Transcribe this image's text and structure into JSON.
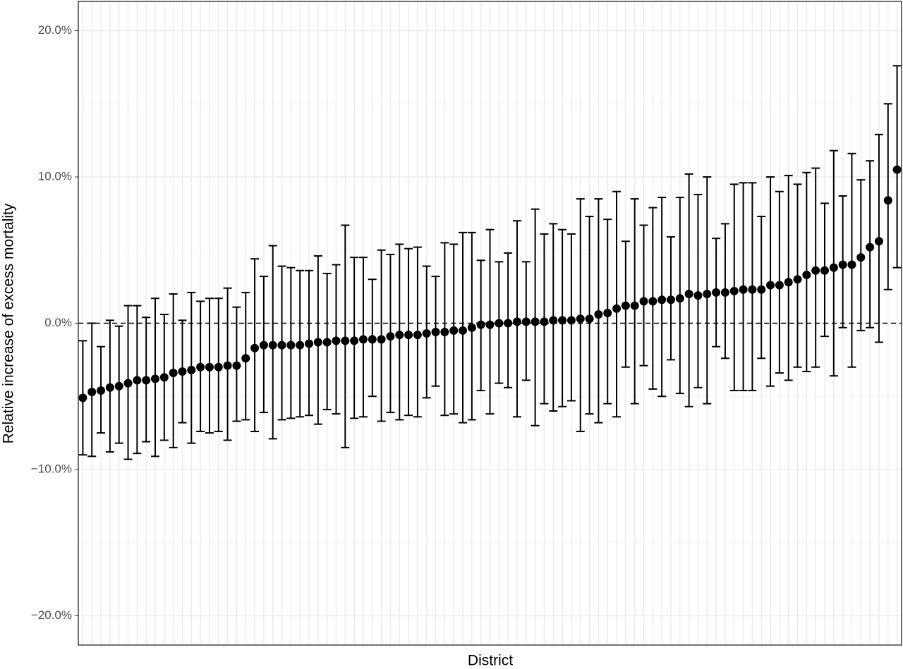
{
  "chart_data": {
    "type": "errorbar",
    "x_label": "District",
    "y_label": "Relative increase of excess mortality",
    "categories": [
      null,
      null,
      null,
      null,
      null,
      null,
      null,
      null,
      null,
      null,
      null,
      null,
      null,
      null,
      null,
      null,
      null,
      null,
      null,
      null,
      null,
      null,
      null,
      null,
      null,
      null,
      null,
      null,
      null,
      null,
      null,
      null,
      null,
      null,
      null,
      null,
      null,
      null,
      null,
      null,
      null,
      null,
      null,
      null,
      null,
      null,
      null,
      null,
      null,
      null,
      null,
      null,
      null,
      null,
      null,
      null,
      null,
      null,
      null,
      null,
      null,
      null,
      null,
      null,
      null,
      null,
      null,
      null,
      null,
      null,
      null,
      null,
      null,
      null,
      null,
      null,
      null,
      null,
      null,
      null,
      null,
      null,
      null,
      null,
      null,
      null,
      null,
      null,
      null,
      null,
      null
    ],
    "series": [
      {
        "color": "#000000",
        "values": [
          -5.1,
          -4.7,
          -4.6,
          -4.4,
          -4.3,
          -4.1,
          -3.9,
          -3.9,
          -3.8,
          -3.7,
          -3.4,
          -3.3,
          -3.2,
          -3.0,
          -3.0,
          -3.0,
          -2.9,
          -2.9,
          -2.4,
          -1.7,
          -1.5,
          -1.5,
          -1.5,
          -1.5,
          -1.5,
          -1.4,
          -1.3,
          -1.3,
          -1.2,
          -1.2,
          -1.2,
          -1.1,
          -1.1,
          -1.1,
          -0.9,
          -0.8,
          -0.8,
          -0.8,
          -0.7,
          -0.6,
          -0.6,
          -0.5,
          -0.5,
          -0.3,
          -0.1,
          -0.1,
          0.0,
          0.0,
          0.1,
          0.1,
          0.1,
          0.1,
          0.2,
          0.2,
          0.2,
          0.3,
          0.3,
          0.6,
          0.7,
          1.0,
          1.2,
          1.2,
          1.5,
          1.5,
          1.6,
          1.6,
          1.7,
          2.0,
          1.9,
          2.0,
          2.1,
          2.1,
          2.2,
          2.3,
          2.3,
          2.3,
          2.6,
          2.6,
          2.8,
          3.0,
          3.3,
          3.6,
          3.6,
          3.8,
          4.0,
          4.0,
          4.5,
          5.2,
          5.6,
          8.4,
          10.5
        ],
        "lower": [
          -9.0,
          -9.1,
          -7.5,
          -8.8,
          -8.2,
          -9.3,
          -8.9,
          -8.1,
          -9.1,
          -8.0,
          -8.5,
          -6.8,
          -8.2,
          -7.4,
          -7.5,
          -7.4,
          -8.0,
          -6.7,
          -6.6,
          -7.4,
          -6.1,
          -7.9,
          -6.6,
          -6.5,
          -6.4,
          -6.3,
          -6.9,
          -5.9,
          -6.2,
          -8.5,
          -6.5,
          -6.4,
          -5.0,
          -6.7,
          -6.1,
          -6.6,
          -6.3,
          -6.4,
          -5.1,
          -4.3,
          -6.3,
          -6.2,
          -6.8,
          -6.6,
          -4.6,
          -6.2,
          -4.1,
          -4.4,
          -6.4,
          -3.9,
          -7.0,
          -5.5,
          -6.0,
          -5.7,
          -5.3,
          -7.4,
          -6.2,
          -6.8,
          -5.5,
          -6.4,
          -3.0,
          -5.5,
          -2.9,
          -4.5,
          -5.0,
          -2.5,
          -4.8,
          -5.7,
          -4.4,
          -5.5,
          -1.6,
          -2.4,
          -4.6,
          -4.6,
          -4.6,
          -2.4,
          -4.3,
          -3.4,
          -3.9,
          -3.0,
          -3.3,
          -3.0,
          -0.9,
          -3.6,
          -0.3,
          -3.0,
          -0.5,
          -0.3,
          -1.3,
          2.3,
          3.8
        ],
        "upper": [
          -1.2,
          0.0,
          -1.6,
          0.2,
          -0.2,
          1.2,
          1.2,
          0.4,
          1.7,
          0.6,
          2.0,
          0.2,
          2.1,
          1.5,
          1.7,
          1.7,
          2.4,
          1.1,
          2.1,
          4.4,
          3.2,
          5.3,
          3.9,
          3.8,
          3.6,
          3.6,
          4.6,
          3.4,
          4.0,
          6.7,
          4.5,
          4.5,
          3.0,
          5.0,
          4.7,
          5.4,
          5.1,
          5.2,
          3.9,
          3.2,
          5.5,
          5.4,
          6.2,
          6.2,
          4.3,
          6.4,
          4.2,
          4.8,
          7.0,
          4.2,
          7.8,
          6.1,
          6.8,
          6.4,
          6.1,
          8.5,
          7.3,
          8.5,
          7.1,
          9.0,
          5.6,
          8.5,
          6.7,
          7.9,
          8.6,
          5.9,
          8.6,
          10.2,
          8.8,
          10.0,
          5.8,
          6.8,
          9.5,
          9.6,
          9.6,
          7.3,
          10.0,
          9.0,
          10.1,
          9.5,
          10.3,
          10.6,
          8.2,
          11.8,
          8.7,
          11.6,
          9.8,
          11.1,
          12.9,
          15.0,
          17.6
        ]
      }
    ],
    "ylim": [
      -22,
      22
    ],
    "yticks": [
      {
        "value": -20,
        "label": "−20.0%"
      },
      {
        "value": -10,
        "label": "−10.0%"
      },
      {
        "value": 0,
        "label": "0.0%"
      },
      {
        "value": 10,
        "label": "10.0%"
      },
      {
        "value": 20,
        "label": "20.0%"
      }
    ],
    "reference_line": 0,
    "grid": true
  }
}
